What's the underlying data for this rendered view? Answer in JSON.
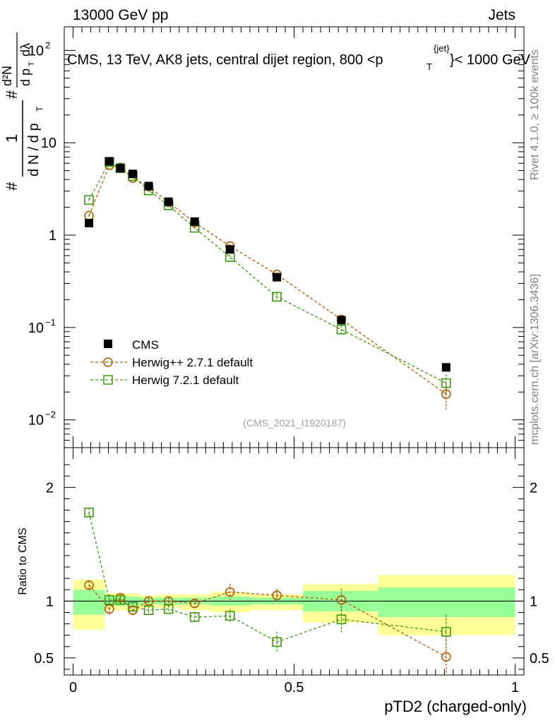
{
  "header": {
    "energy_label": "13000 GeV pp",
    "category_label": "Jets",
    "title_prefix": "CMS, 13 TeV, AK8 jets, central dijet region, 800 <p",
    "title_sup": "{jet}",
    "title_sub": "T",
    "title_suffix": "}< 1000 GeV",
    "rivet_label": "Rivet 4.1.0, ≥ 100k events",
    "site_label": "mcplots.cern.ch [arXiv:1306.3436]",
    "analysis_label": "(CMS_2021_I1920187)"
  },
  "colors": {
    "cms": "#000000",
    "herwigpp": "#b35900",
    "herwig7": "#3a9a0a",
    "band_outer": "#ffff99",
    "band_inner": "#99ff99"
  },
  "chart_data": [
    {
      "type": "scatter",
      "panel": "main",
      "ylabel_num": "1",
      "ylabel_den": "d N / d p",
      "ylabel_sub": "T",
      "ylabel_hash": "#",
      "ylabel_frac_num": "d²N",
      "ylabel_frac_den": "d p",
      "ylabel_frac_den_sub": "T",
      "ylabel_frac_den_tail": "dλ",
      "yscale": "log",
      "ylim": [
        0.005,
        180
      ],
      "xlim": [
        -0.02,
        1.02
      ],
      "ytick_labels": [
        {
          "v": 100,
          "base": "10",
          "exp": "2"
        },
        {
          "v": 10,
          "base": "10",
          "exp": ""
        },
        {
          "v": 1,
          "base": "1",
          "exp": ""
        },
        {
          "v": 0.1,
          "base": "10",
          "exp": "−1"
        },
        {
          "v": 0.01,
          "base": "10",
          "exp": "−2"
        }
      ],
      "legend": [
        {
          "key": "cms",
          "label": "CMS"
        },
        {
          "key": "herwigpp",
          "label": "Herwig++ 2.7.1 default"
        },
        {
          "key": "herwig7",
          "label": "Herwig 7.2.1 default"
        }
      ],
      "series": [
        {
          "name": "CMS",
          "key": "cms",
          "x": [
            0.036,
            0.082,
            0.107,
            0.135,
            0.171,
            0.216,
            0.275,
            0.355,
            0.461,
            0.607,
            0.844
          ],
          "y": [
            1.35,
            6.3,
            5.3,
            4.6,
            3.4,
            2.3,
            1.4,
            0.7,
            0.35,
            0.12,
            0.037
          ]
        },
        {
          "name": "Herwig++ 2.7.1 default",
          "key": "herwigpp",
          "x": [
            0.036,
            0.082,
            0.107,
            0.135,
            0.171,
            0.216,
            0.275,
            0.355,
            0.461,
            0.607,
            0.844
          ],
          "y": [
            1.62,
            5.7,
            5.4,
            4.15,
            3.35,
            2.27,
            1.37,
            0.76,
            0.375,
            0.122,
            0.019
          ],
          "yerr": [
            0.05,
            0.1,
            0.1,
            0.1,
            0.05,
            0.05,
            0.03,
            0.03,
            0.02,
            0.012,
            0.006
          ]
        },
        {
          "name": "Herwig 7.2.1 default",
          "key": "herwig7",
          "x": [
            0.036,
            0.082,
            0.107,
            0.135,
            0.171,
            0.216,
            0.275,
            0.355,
            0.461,
            0.607,
            0.844
          ],
          "y": [
            2.4,
            6.2,
            5.3,
            4.35,
            3.05,
            2.1,
            1.2,
            0.58,
            0.215,
            0.095,
            0.025
          ],
          "yerr": [
            0.08,
            0.1,
            0.1,
            0.1,
            0.05,
            0.05,
            0.03,
            0.03,
            0.02,
            0.01,
            0.006
          ]
        }
      ]
    },
    {
      "type": "scatter",
      "panel": "ratio",
      "ylabel": "Ratio to CMS",
      "xlabel": "pTD2 (charged-only)",
      "ylim": [
        0.35,
        2.35
      ],
      "xlim": [
        -0.02,
        1.02
      ],
      "xticks": [
        0,
        0.5,
        1
      ],
      "xtick_labels": [
        "0",
        "0.5",
        "1"
      ],
      "yticks": [
        0.5,
        1,
        2
      ],
      "ytick_labels": [
        "0.5",
        "1",
        "2"
      ],
      "bands": {
        "edges": [
          0,
          0.072,
          0.093,
          0.122,
          0.15,
          0.192,
          0.24,
          0.31,
          0.4,
          0.52,
          0.69,
          1.0
        ],
        "inner_lo": [
          0.88,
          0.96,
          0.96,
          0.96,
          0.97,
          0.97,
          0.97,
          0.96,
          0.97,
          0.91,
          0.86
        ],
        "inner_hi": [
          1.1,
          1.04,
          1.04,
          1.04,
          1.03,
          1.03,
          1.03,
          1.04,
          1.03,
          1.09,
          1.12
        ],
        "outer_lo": [
          0.75,
          0.92,
          0.92,
          0.91,
          0.94,
          0.94,
          0.92,
          0.9,
          0.92,
          0.81,
          0.7
        ],
        "outer_hi": [
          1.19,
          1.07,
          1.07,
          1.07,
          1.05,
          1.06,
          1.06,
          1.08,
          1.06,
          1.15,
          1.23
        ]
      },
      "series": [
        {
          "name": "Herwig++ 2.7.1 default",
          "key": "herwigpp",
          "x": [
            0.036,
            0.082,
            0.107,
            0.135,
            0.171,
            0.216,
            0.275,
            0.355,
            0.461,
            0.607,
            0.844
          ],
          "y": [
            1.14,
            0.93,
            1.03,
            0.92,
            1.0,
            1.0,
            0.98,
            1.08,
            1.05,
            1.01,
            0.51
          ],
          "yerr": [
            0.04,
            0.05,
            0.04,
            0.04,
            0.03,
            0.03,
            0.04,
            0.07,
            0.06,
            0.1,
            0.22
          ]
        },
        {
          "name": "Herwig 7.2.1 default",
          "key": "herwig7",
          "x": [
            0.036,
            0.082,
            0.107,
            0.135,
            0.171,
            0.216,
            0.275,
            0.355,
            0.461,
            0.607,
            0.844
          ],
          "y": [
            1.78,
            1.01,
            1.01,
            0.95,
            0.92,
            0.93,
            0.86,
            0.87,
            0.64,
            0.84,
            0.73
          ],
          "yerr": [
            0.04,
            0.05,
            0.04,
            0.04,
            0.03,
            0.03,
            0.04,
            0.06,
            0.09,
            0.12,
            0.15
          ]
        }
      ]
    }
  ]
}
